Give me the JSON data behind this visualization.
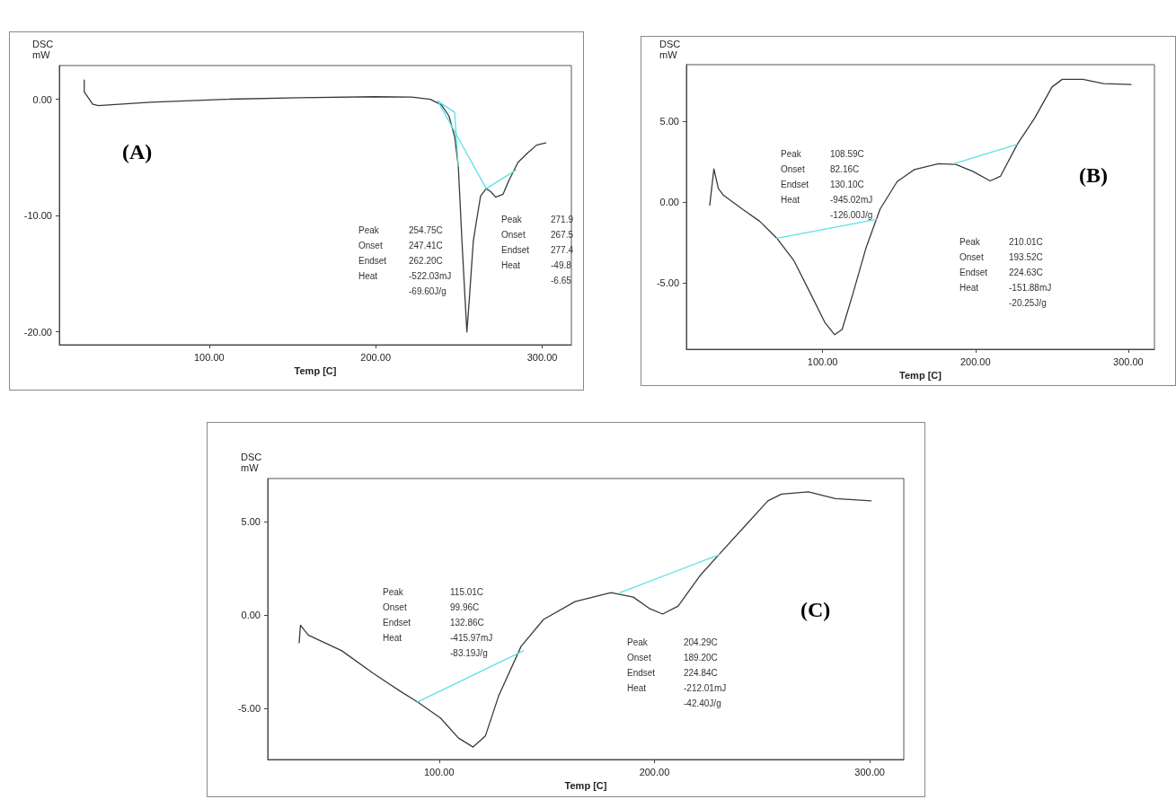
{
  "chart_data": [
    {
      "type": "line",
      "xlabel": "Temp [C]",
      "ylabel": "DSC\nmW",
      "marker": "none",
      "line_style": "solid",
      "grid": false,
      "xlim": [
        10,
        317.5
      ],
      "xticks": [
        {
          "value": 100,
          "label": "100.00"
        },
        {
          "value": 200,
          "label": "200.00"
        },
        {
          "value": 300,
          "label": "300.00"
        }
      ],
      "ylim": [
        -21.1,
        2.9
      ],
      "yticks": [
        {
          "value": 0,
          "label": "0.00"
        },
        {
          "value": -10,
          "label": "-10.00"
        },
        {
          "value": -20,
          "label": "-20.00"
        }
      ],
      "annotations": [
        "(A)",
        "Peak\nOnset\nEndset\nHeat",
        "254.75C\n247.41C\n262.20C\n-522.03mJ\n-69.60J/g",
        "Peak\nOnset\nEndset\nHeat",
        "271.9\n267.5\n277.4\n-49.8\n-6.65"
      ],
      "series": [
        {
          "color": "#3a3a3a",
          "x": [
            25,
            25,
            30.1,
            33.5,
            64.8,
            109.6,
            154,
            199.2,
            221.6,
            232.8,
            239.5,
            244,
            247.4,
            249.6,
            251.8,
            253.6,
            254.75,
            256.3,
            258.6,
            260.8,
            263,
            266.4,
            269.1,
            272,
            276.5,
            279.8,
            285.4,
            291,
            296.6,
            302.2
          ],
          "values": [
            1.66,
            0.64,
            -0.42,
            -0.54,
            -0.26,
            0,
            0.13,
            0.22,
            0.19,
            0,
            -0.48,
            -1.44,
            -3.2,
            -5.76,
            -12.2,
            -17,
            -20,
            -17,
            -12.2,
            -10.2,
            -8.3,
            -7.68,
            -7.94,
            -8.42,
            -8.16,
            -7.04,
            -5.44,
            -4.64,
            -3.94,
            -3.74
          ]
        },
        {
          "color": "#5ce1e6",
          "x": [
            237.3,
            266.4,
            284.3
          ],
          "values": [
            -0.16,
            -7.68,
            -6.08
          ]
        },
        {
          "color": "#5ce1e6",
          "x": [
            237.3,
            247.4,
            249.6
          ],
          "values": [
            -0.16,
            -1.12,
            -5.76
          ]
        }
      ]
    },
    {
      "type": "line",
      "xlabel": "Temp [C]",
      "ylabel": "DSC\nmW",
      "marker": "none",
      "line_style": "solid",
      "grid": false,
      "xlim": [
        10.9,
        317.1
      ],
      "xticks": [
        {
          "value": 100,
          "label": "100.00"
        },
        {
          "value": 200,
          "label": "200.00"
        },
        {
          "value": 300,
          "label": "300.00"
        }
      ],
      "ylim": [
        -9.09,
        8.51
      ],
      "yticks": [
        {
          "value": 5,
          "label": "5.00"
        },
        {
          "value": 0,
          "label": "0.00"
        },
        {
          "value": -5,
          "label": "-5.00"
        }
      ],
      "annotations": [
        "(B)",
        "Peak\nOnset\nEndset\nHeat",
        "108.59C\n82.16C\n130.10C\n-945.02mJ\n-126.00J/g",
        "Peak\nOnset\nEndset\nHeat",
        "210.01C\n193.52C\n224.63C\n-151.88mJ\n-20.25J/g"
      ],
      "series": [
        {
          "color": "#3a3a3a",
          "x": [
            26.2,
            28.9,
            31.8,
            35.2,
            47.6,
            58.8,
            70.1,
            81.3,
            92.6,
            101.6,
            107.9,
            112.8,
            119.6,
            128.6,
            137.6,
            148.8,
            160.1,
            175.8,
            187.1,
            198.3,
            209.6,
            216.3,
            227.6,
            238.8,
            250.1,
            256.8,
            270.3,
            283.8,
            301.8
          ],
          "values": [
            -0.17,
            2.06,
            0.85,
            0.43,
            -0.43,
            -1.17,
            -2.23,
            -3.62,
            -5.74,
            -7.45,
            -8.19,
            -7.87,
            -5.74,
            -2.77,
            -0.43,
            1.28,
            2.02,
            2.38,
            2.34,
            1.91,
            1.32,
            1.6,
            3.62,
            5.21,
            7.13,
            7.6,
            7.6,
            7.34,
            7.28
          ]
        },
        {
          "color": "#5ce1e6",
          "x": [
            70.1,
            135.3
          ],
          "values": [
            -2.23,
            -1.06
          ]
        },
        {
          "color": "#5ce1e6",
          "x": [
            185.9,
            227.1
          ],
          "values": [
            2.38,
            3.57
          ]
        }
      ]
    },
    {
      "type": "line",
      "xlabel": "Temp [C]",
      "ylabel": "DSC\nmW",
      "marker": "none",
      "line_style": "solid",
      "grid": false,
      "xlim": [
        20.4,
        315.8
      ],
      "xticks": [
        {
          "value": 100,
          "label": "100.00"
        },
        {
          "value": 200,
          "label": "200.00"
        },
        {
          "value": 300,
          "label": "300.00"
        }
      ],
      "ylim": [
        -7.76,
        7.33
      ],
      "yticks": [
        {
          "value": 5,
          "label": "5.00"
        },
        {
          "value": 0,
          "label": "0.00"
        },
        {
          "value": -5,
          "label": "-5.00"
        }
      ],
      "annotations": [
        "(C)",
        "Peak\nOnset\nEndset\nHeat",
        "115.01C\n99.96C\n132.86C\n-415.97mJ\n-83.19J/g",
        "Peak\nOnset\nEndset\nHeat",
        "204.29C\n189.20C\n224.84C\n-212.01mJ\n-42.40J/g"
      ],
      "series": [
        {
          "color": "#3a3a3a",
          "x": [
            35,
            35.6,
            39.2,
            54.8,
            69.4,
            81.9,
            90.2,
            100.6,
            109,
            115.8,
            121.5,
            127.7,
            138.1,
            148.5,
            163.1,
            179.8,
            190.2,
            197.5,
            203.8,
            211,
            221.5,
            231.9,
            242.3,
            252.7,
            259,
            271.5,
            284,
            300.6
          ],
          "values": [
            -1.49,
            -0.55,
            -1.08,
            -1.92,
            -3.13,
            -4.09,
            -4.69,
            -5.53,
            -6.61,
            -7.09,
            -6.49,
            -4.33,
            -1.68,
            -0.24,
            0.72,
            1.2,
            0.96,
            0.36,
            0.05,
            0.48,
            2.16,
            3.49,
            4.81,
            6.13,
            6.49,
            6.61,
            6.25,
            6.13
          ]
        },
        {
          "color": "#5ce1e6",
          "x": [
            89.6,
            139.2
          ],
          "values": [
            -4.69,
            -1.92
          ]
        },
        {
          "color": "#5ce1e6",
          "x": [
            184,
            230.4
          ],
          "values": [
            1.2,
            3.25
          ]
        }
      ]
    }
  ]
}
